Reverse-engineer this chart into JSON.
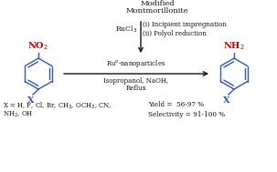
{
  "bg_color": "#ffffff",
  "title_line1": "Modified",
  "title_line2": "Montmorillonite",
  "rucl3_label": "RuCl$_3$",
  "step1": "(i) Incipient impregnation",
  "step2": "(ii) Polyol reduction",
  "catalyst": "Ru$^o$-nanoparticles",
  "conditions": "Isopropanol, NaOH,",
  "reflux": "Reflux",
  "substituents": "X = H, F, Cl, Br, CH$_3$, OCH$_3$, CN,",
  "substituents2": "NH$_2$, OH",
  "yield_text": "Yield =  56-97 %",
  "selectivity_text": "Selectivity = 91-100 %",
  "nitro_label": "NO$_2$",
  "amino_label": "NH$_2$",
  "x_label": "X",
  "blue_color": "#3355bb",
  "red_color": "#cc0000",
  "black_color": "#111111",
  "fig_width": 3.03,
  "fig_height": 1.89,
  "dpi": 100
}
